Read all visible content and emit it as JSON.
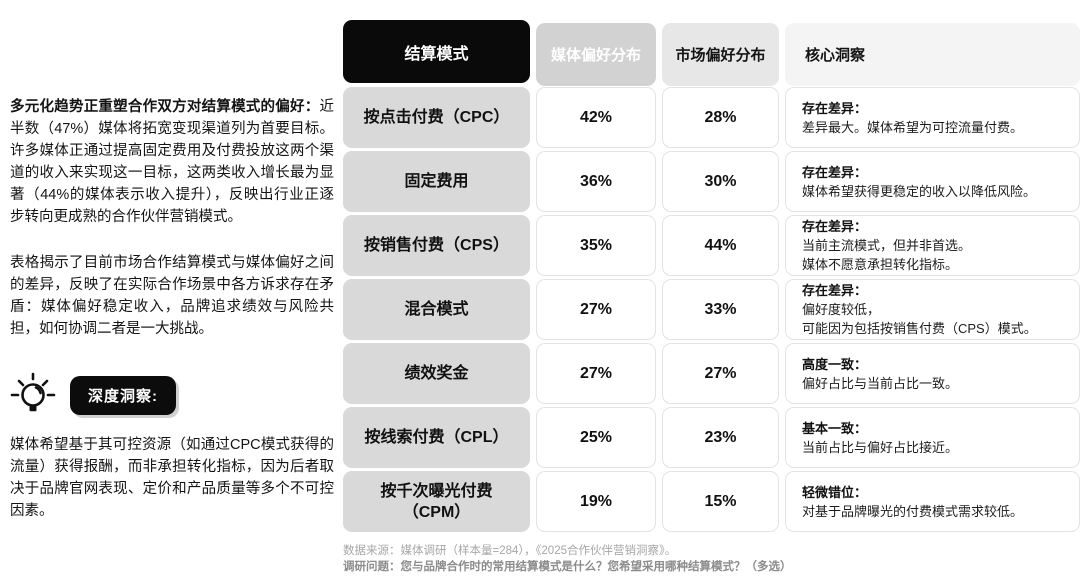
{
  "left_panel": {
    "para1_bold": "多元化趋势正重塑合作双方对结算模式的偏好：",
    "para1_rest": "近半数（47%）媒体将拓宽变现渠道列为首要目标。许多媒体正通过提高固定费用及付费投放这两个渠道的收入来实现这一目标，这两类收入增长最为显著（44%的媒体表示收入提升），反映出行业正逐步转向更成熟的合作伙伴营销模式。",
    "para2": "表格揭示了目前市场合作结算模式与媒体偏好之间的差异，反映了在实际合作场景中各方诉求存在矛盾：媒体偏好稳定收入，品牌追求绩效与风险共担，如何协调二者是一大挑战。",
    "insight_badge_label": "深度洞察:",
    "lightbulb_icon": "lightbulb-icon",
    "para3": "媒体希望基于其可控资源（如通过CPC模式获得的流量）获得报酬，而非承担转化指标，因为后者取决于品牌官网表现、定价和产品质量等多个不可控因素。"
  },
  "table": {
    "headers": {
      "mode": "结算模式",
      "media": "媒体偏好分布",
      "market": "市场偏好分布",
      "insight": "核心洞察"
    },
    "rows": [
      {
        "mode": "按点击付费（CPC）",
        "media": "42%",
        "market": "28%",
        "insight_title": "存在差异：",
        "insight_body": "差异最大。媒体希望为可控流量付费。"
      },
      {
        "mode": "固定费用",
        "media": "36%",
        "market": "30%",
        "insight_title": "存在差异：",
        "insight_body": "媒体希望获得更稳定的收入以降低风险。"
      },
      {
        "mode": "按销售付费（CPS）",
        "media": "35%",
        "market": "44%",
        "insight_title": "存在差异：",
        "insight_body": "当前主流模式，但并非首选。\n媒体不愿意承担转化指标。"
      },
      {
        "mode": "混合模式",
        "media": "27%",
        "market": "33%",
        "insight_title": "存在差异：",
        "insight_body": "偏好度较低，\n可能因为包括按销售付费（CPS）模式。"
      },
      {
        "mode": "绩效奖金",
        "media": "27%",
        "market": "27%",
        "insight_title": "高度一致：",
        "insight_body": "偏好占比与当前占比一致。"
      },
      {
        "mode": "按线索付费（CPL）",
        "media": "25%",
        "market": "23%",
        "insight_title": "基本一致：",
        "insight_body": "当前占比与偏好占比接近。"
      },
      {
        "mode": "按千次曝光付费（CPM）",
        "media": "19%",
        "market": "15%",
        "insight_title": "轻微错位：",
        "insight_body": "对基于品牌曝光的付费模式需求较低。"
      }
    ]
  },
  "footer": {
    "source": "数据来源：媒体调研（样本量=284），《2025合作伙伴营销洞察》。",
    "question": "调研问题：您与品牌合作时的常用结算模式是什么？您希望采用哪种结算模式？（多选）"
  },
  "colors": {
    "header_black": "#0a0a0a",
    "header_media_gray": "#d2d2d2",
    "header_market_gray": "#e7e7e7",
    "header_insight_gray": "#f4f4f4",
    "mode_cell_gray": "#d9d9d9",
    "cell_border": "#e3e3e3",
    "badge_black": "#0c0c0c"
  }
}
